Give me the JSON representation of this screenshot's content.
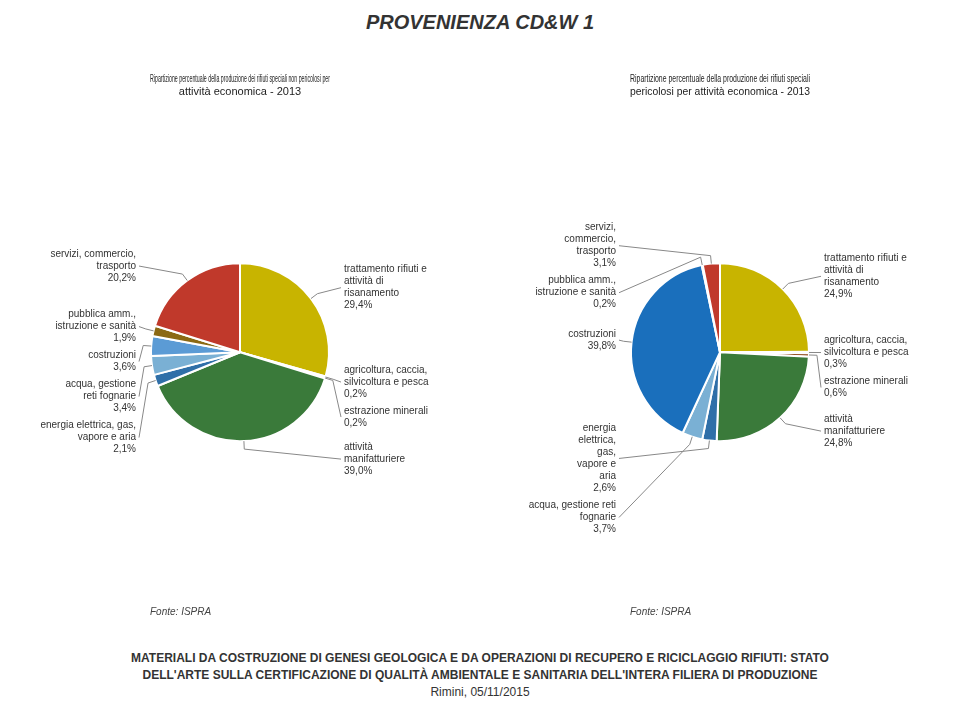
{
  "title": "PROVENIENZA CD&W 1",
  "annotations": [
    "MATERIALI DA COSTRUZIONE DI GENESI GEOLOGICA E DA OPERAZIONI DI RECUPERO E RICICLAGGIO RIFIUTI: STATO",
    "DELL'ARTE SULLA CERTIFICAZIONE DI QUALITÀ AMBIENTALE E SANITARIA DELL'INTERA FILIERA DI PRODUZIONE",
    "Rimini, 05/11/2015"
  ],
  "chart_data": [
    {
      "type": "pie",
      "title": "Ripartizione percentuale della produzione dei rifiuti speciali non pericolosi per\nattività economica - 2013",
      "categories": [
        "trattamento rifiuti e\nattività di\nrisanamento",
        "agricoltura, caccia,\nsilvicoltura e pesca",
        "estrazione minerali",
        "attività\nmanifatturiere",
        "energia elettrica, gas,\nvapore e aria",
        "acqua, gestione\nreti fognarie",
        "costruzioni",
        "pubblica amm.,\nistruzione e sanità",
        "servizi, commercio,\ntrasporto"
      ],
      "values": [
        29.4,
        0.2,
        0.2,
        39.0,
        2.1,
        3.4,
        3.6,
        1.9,
        20.2
      ],
      "value_labels": [
        "29,4%",
        "0,2%",
        "0,2%",
        "39,0%",
        "2,1%",
        "3,4%",
        "3,6%",
        "1,9%",
        "20,2%"
      ],
      "colors": [
        "#c8b400",
        "#7b5c00",
        "#8b4513",
        "#3a7a3a",
        "#2f6fa8",
        "#7ab0d4",
        "#5b9bd5",
        "#8b6914",
        "#c0392b"
      ],
      "data_labels": true,
      "annotations": [
        "Fonte: ISPRA"
      ]
    },
    {
      "type": "pie",
      "title": "Ripartizione percentuale della produzione dei rifiuti speciali\npericolosi per attività economica - 2013",
      "categories": [
        "trattamento rifiuti e\nattività di\nrisanamento",
        "agricoltura, caccia,\nsilvicoltura e pesca",
        "estrazione minerali",
        "attività\nmanifatturiere",
        "energia\nelettrica,\ngas,\nvapore e\naria",
        "acqua, gestione reti\nfognarie",
        "costruzioni",
        "pubblica amm.,\nistruzione e sanità",
        "servizi,\ncommercio,\ntrasporto"
      ],
      "values": [
        24.9,
        0.3,
        0.6,
        24.8,
        2.6,
        3.7,
        39.8,
        0.2,
        3.1
      ],
      "value_labels": [
        "24,9%",
        "0,3%",
        "0,6%",
        "24,8%",
        "2,6%",
        "3,7%",
        "39,8%",
        "0,2%",
        "3,1%"
      ],
      "colors": [
        "#c8b400",
        "#7b5c00",
        "#8b4513",
        "#3a7a3a",
        "#2f6fa8",
        "#7ab0d4",
        "#1a6fbc",
        "#8b6914",
        "#c0392b"
      ],
      "data_labels": true,
      "annotations": [
        "Fonte: ISPRA"
      ]
    }
  ]
}
